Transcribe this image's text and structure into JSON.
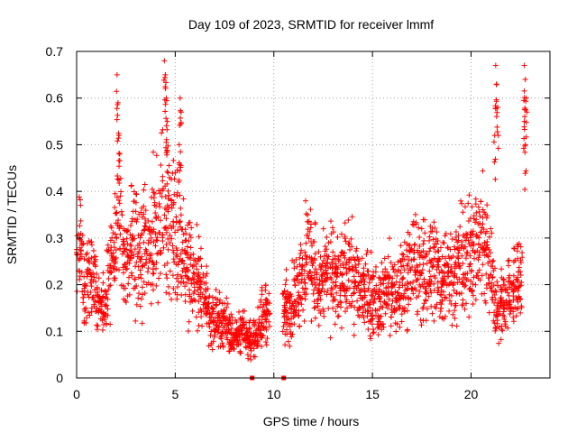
{
  "chart_data": {
    "type": "scatter",
    "title": "Day 109 of 2023, SRMTID for receiver lmmf",
    "xlabel": "GPS time / hours",
    "ylabel": "SRMTID / TECUs",
    "xlim": [
      0,
      24
    ],
    "ylim": [
      0,
      0.7
    ],
    "x_ticks": [
      "0",
      "5",
      "10",
      "15",
      "20"
    ],
    "x_tick_values": [
      0,
      5,
      10,
      15,
      20
    ],
    "y_ticks": [
      "0",
      "0.1",
      "0.2",
      "0.3",
      "0.4",
      "0.5",
      "0.6",
      "0.7"
    ],
    "y_tick_values": [
      0,
      0.1,
      0.2,
      0.3,
      0.4,
      0.5,
      0.6,
      0.7
    ],
    "grid": true,
    "marker": "+",
    "marker_color": "#ff0000",
    "series": [
      {
        "name": "SRMTID",
        "trend": [
          [
            0.0,
            0.3
          ],
          [
            0.2,
            0.28
          ],
          [
            0.4,
            0.18
          ],
          [
            0.6,
            0.21
          ],
          [
            0.8,
            0.22
          ],
          [
            1.0,
            0.17
          ],
          [
            1.2,
            0.15
          ],
          [
            1.4,
            0.14
          ],
          [
            1.6,
            0.2
          ],
          [
            1.8,
            0.27
          ],
          [
            2.0,
            0.32
          ],
          [
            2.2,
            0.35
          ],
          [
            2.4,
            0.3
          ],
          [
            2.6,
            0.25
          ],
          [
            2.8,
            0.3
          ],
          [
            3.0,
            0.28
          ],
          [
            3.2,
            0.24
          ],
          [
            3.4,
            0.26
          ],
          [
            3.6,
            0.28
          ],
          [
            3.8,
            0.3
          ],
          [
            4.0,
            0.33
          ],
          [
            4.2,
            0.32
          ],
          [
            4.4,
            0.38
          ],
          [
            4.6,
            0.36
          ],
          [
            4.8,
            0.33
          ],
          [
            5.0,
            0.3
          ],
          [
            5.2,
            0.32
          ],
          [
            5.4,
            0.28
          ],
          [
            5.6,
            0.24
          ],
          [
            5.8,
            0.22
          ],
          [
            6.0,
            0.22
          ],
          [
            6.2,
            0.2
          ],
          [
            6.4,
            0.19
          ],
          [
            6.6,
            0.16
          ],
          [
            6.8,
            0.13
          ],
          [
            7.0,
            0.12
          ],
          [
            7.2,
            0.13
          ],
          [
            7.4,
            0.11
          ],
          [
            7.6,
            0.12
          ],
          [
            7.8,
            0.1
          ],
          [
            8.0,
            0.09
          ],
          [
            8.2,
            0.09
          ],
          [
            8.4,
            0.1
          ],
          [
            8.6,
            0.09
          ],
          [
            8.8,
            0.08
          ],
          [
            9.0,
            0.09
          ],
          [
            9.2,
            0.1
          ],
          [
            9.4,
            0.13
          ],
          [
            9.6,
            0.15
          ],
          [
            9.8,
            0.13
          ],
          [
            10.4,
            0.14
          ],
          [
            10.6,
            0.15
          ],
          [
            10.8,
            0.16
          ],
          [
            11.0,
            0.17
          ],
          [
            11.2,
            0.19
          ],
          [
            11.4,
            0.21
          ],
          [
            11.6,
            0.24
          ],
          [
            11.8,
            0.28
          ],
          [
            12.0,
            0.24
          ],
          [
            12.2,
            0.2
          ],
          [
            12.4,
            0.19
          ],
          [
            12.6,
            0.22
          ],
          [
            12.8,
            0.23
          ],
          [
            13.0,
            0.22
          ],
          [
            13.2,
            0.21
          ],
          [
            13.4,
            0.2
          ],
          [
            13.6,
            0.22
          ],
          [
            13.8,
            0.24
          ],
          [
            14.0,
            0.21
          ],
          [
            14.2,
            0.2
          ],
          [
            14.4,
            0.19
          ],
          [
            14.6,
            0.2
          ],
          [
            14.8,
            0.18
          ],
          [
            15.0,
            0.17
          ],
          [
            15.2,
            0.18
          ],
          [
            15.4,
            0.16
          ],
          [
            15.6,
            0.18
          ],
          [
            15.8,
            0.19
          ],
          [
            16.0,
            0.18
          ],
          [
            16.2,
            0.17
          ],
          [
            16.4,
            0.19
          ],
          [
            16.6,
            0.21
          ],
          [
            16.8,
            0.23
          ],
          [
            17.0,
            0.24
          ],
          [
            17.2,
            0.25
          ],
          [
            17.4,
            0.23
          ],
          [
            17.6,
            0.22
          ],
          [
            17.8,
            0.23
          ],
          [
            18.0,
            0.25
          ],
          [
            18.2,
            0.24
          ],
          [
            18.4,
            0.22
          ],
          [
            18.6,
            0.21
          ],
          [
            18.8,
            0.24
          ],
          [
            19.0,
            0.23
          ],
          [
            19.2,
            0.22
          ],
          [
            19.4,
            0.24
          ],
          [
            19.6,
            0.25
          ],
          [
            19.8,
            0.26
          ],
          [
            20.0,
            0.27
          ],
          [
            20.2,
            0.3
          ],
          [
            20.4,
            0.28
          ],
          [
            20.6,
            0.29
          ],
          [
            20.8,
            0.27
          ],
          [
            21.0,
            0.22
          ],
          [
            21.2,
            0.18
          ],
          [
            21.4,
            0.15
          ],
          [
            21.6,
            0.16
          ],
          [
            21.8,
            0.18
          ],
          [
            22.0,
            0.2
          ],
          [
            22.2,
            0.19
          ],
          [
            22.4,
            0.21
          ],
          [
            22.6,
            0.23
          ]
        ],
        "spikes": [
          [
            2.05,
            0.65
          ],
          [
            2.1,
            0.59
          ],
          [
            2.15,
            0.52
          ],
          [
            4.45,
            0.68
          ],
          [
            4.5,
            0.65
          ],
          [
            4.55,
            0.6
          ],
          [
            5.25,
            0.6
          ],
          [
            5.3,
            0.57
          ],
          [
            5.2,
            0.5
          ],
          [
            4.6,
            0.55
          ],
          [
            21.25,
            0.67
          ],
          [
            21.3,
            0.63
          ],
          [
            21.35,
            0.58
          ],
          [
            21.2,
            0.52
          ],
          [
            22.7,
            0.67
          ],
          [
            22.75,
            0.64
          ],
          [
            22.8,
            0.6
          ],
          [
            22.7,
            0.55
          ],
          [
            22.75,
            0.5
          ]
        ],
        "zero_points": [
          [
            8.9,
            0.0
          ],
          [
            10.5,
            0.0
          ]
        ]
      }
    ]
  }
}
